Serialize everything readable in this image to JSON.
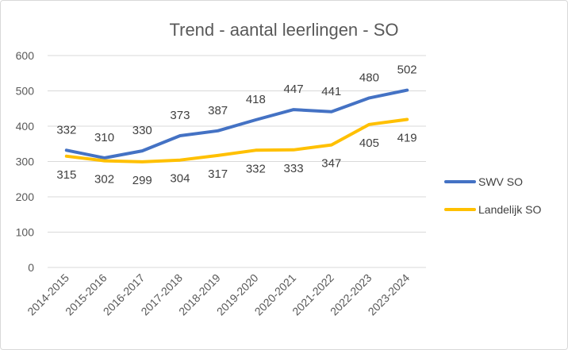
{
  "chart_data": {
    "type": "line",
    "title": "Trend - aantal leerlingen - SO",
    "categories": [
      "2014-2015",
      "2015-2016",
      "2016-2017",
      "2017-2018",
      "2018-2019",
      "2019-2020",
      "2020-2021",
      "2021-2022",
      "2022-2023",
      "2023-2024"
    ],
    "ylim": [
      0,
      600
    ],
    "yticks": [
      "0",
      "100",
      "200",
      "300",
      "400",
      "500",
      "600"
    ],
    "grid": true,
    "legend_position": "right",
    "series": [
      {
        "name": "SWV SO",
        "color": "#4472C4",
        "values": [
          332,
          310,
          330,
          373,
          387,
          418,
          447,
          441,
          480,
          502
        ]
      },
      {
        "name": "Landelijk SO",
        "color": "#FFC000",
        "values": [
          315,
          302,
          299,
          304,
          317,
          332,
          333,
          347,
          405,
          419
        ]
      }
    ]
  }
}
